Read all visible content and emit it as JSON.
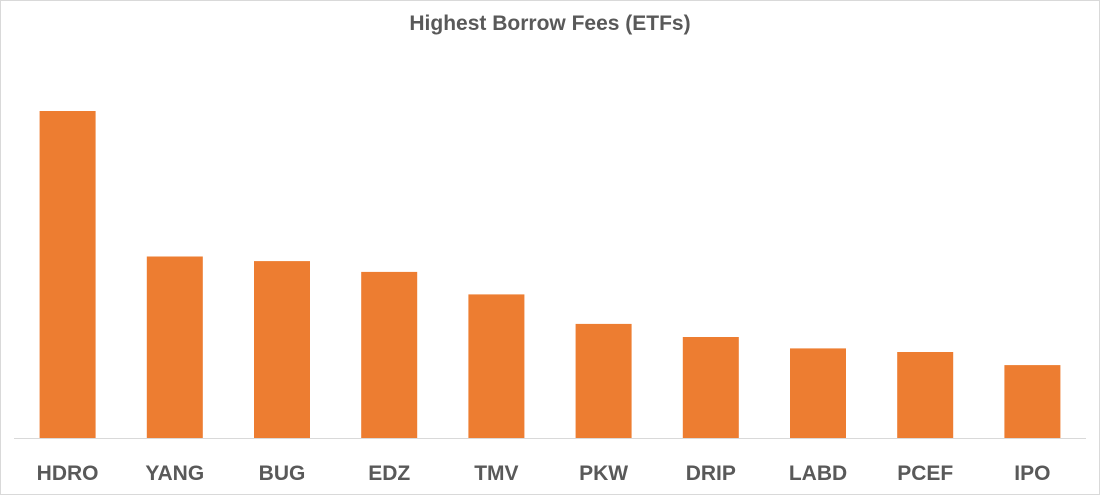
{
  "chart_data": {
    "type": "bar",
    "title": "Highest Borrow Fees (ETFs)",
    "xlabel": "",
    "ylabel": "",
    "categories": [
      "HDRO",
      "YANG",
      "BUG",
      "EDZ",
      "TMV",
      "PKW",
      "DRIP",
      "LABD",
      "PCEF",
      "IPO"
    ],
    "values": [
      100,
      55.5,
      54.1,
      50.8,
      43.9,
      34.9,
      30.9,
      27.4,
      26.3,
      22.3
    ],
    "ylim": [
      0,
      100
    ],
    "grid": false,
    "legend": "none",
    "bar_color": "#ED7D31",
    "axis_color": "#D9D9D9"
  }
}
